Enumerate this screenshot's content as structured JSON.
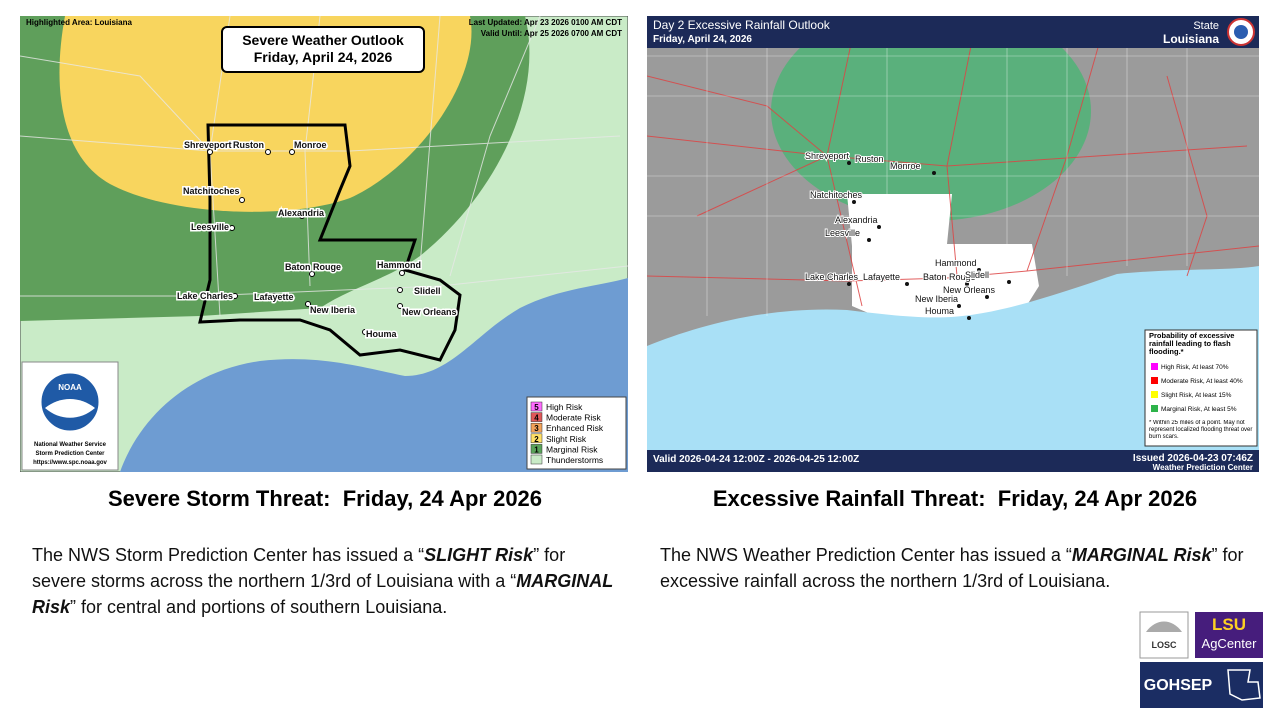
{
  "left_map": {
    "highlighted_area": "Highlighted Area: Louisiana",
    "title": "Severe Weather Outlook",
    "date": "Friday, April 24, 2026",
    "last_updated": "Last Updated: Apr 23 2026 0100 AM CDT",
    "valid_until": "Valid Until: Apr 25 2026 0700 AM CDT",
    "cities": [
      "Shreveport",
      "Ruston",
      "Monroe",
      "Natchitoches",
      "Alexandria",
      "Leesville",
      "Baton Rouge",
      "Hammond",
      "Lake Charles",
      "Lafayette",
      "New Iberia",
      "Slidell",
      "New Orleans",
      "Houma"
    ],
    "legend": [
      {
        "num": "5",
        "label": "High Risk"
      },
      {
        "num": "4",
        "label": "Moderate Risk"
      },
      {
        "num": "3",
        "label": "Enhanced Risk"
      },
      {
        "num": "2",
        "label": "Slight Risk"
      },
      {
        "num": "1",
        "label": "Marginal Risk"
      },
      {
        "label": "Thunderstorms"
      }
    ],
    "logo": {
      "name": "NOAA",
      "line1": "National Weather Service",
      "line2": "Storm Prediction Center",
      "url": "https://www.spc.noaa.gov"
    }
  },
  "right_map": {
    "title": "Day 2 Excessive Rainfall Outlook",
    "date": "Friday, April 24, 2026",
    "state_label": "State",
    "state": "Louisiana",
    "cities": [
      "Shreveport",
      "Ruston",
      "Monroe",
      "Natchitoches",
      "Alexandria",
      "Leesville",
      "Lake Charles",
      "Lafayette",
      "Baton Rouge",
      "Hammond",
      "Slidell",
      "New Iberia",
      "New Orleans",
      "Houma"
    ],
    "legend_title": "Probability of excessive rainfall leading to flash flooding.*",
    "legend": [
      "High Risk, At least 70%",
      "Moderate Risk, At least 40%",
      "Slight Risk, At least 15%",
      "Marginal Risk, At least 5%"
    ],
    "footnote": "* Within 25 miles of a point. May not represent localized flooding threat over burn scars.",
    "valid": "Valid 2026-04-24 12:00Z - 2026-04-25 12:00Z",
    "issued": "Issued 2026-04-23 07:46Z",
    "center": "Weather Prediction Center"
  },
  "left_text": {
    "heading": "Severe Storm Threat:  Friday, 24 Apr 2026",
    "paragraph": [
      "The NWS Storm Prediction Center has issued a “",
      "SLIGHT Risk",
      "” for severe storms across the northern 1/3rd of Louisiana with a “",
      "MARGINAL Risk",
      "” for central and portions of southern Louisiana."
    ]
  },
  "right_text": {
    "heading": "Excessive Rainfall Threat:  Friday, 24 Apr 2026",
    "paragraph": [
      "The NWS Weather Prediction Center has issued a “",
      "MARGINAL Risk",
      "” for excessive rainfall across the northern 1/3rd of Louisiana."
    ]
  },
  "logos": {
    "losc": "LOSC",
    "lsu": "LSU",
    "agcenter": "AgCenter",
    "gohsep": "GOHSEP"
  }
}
